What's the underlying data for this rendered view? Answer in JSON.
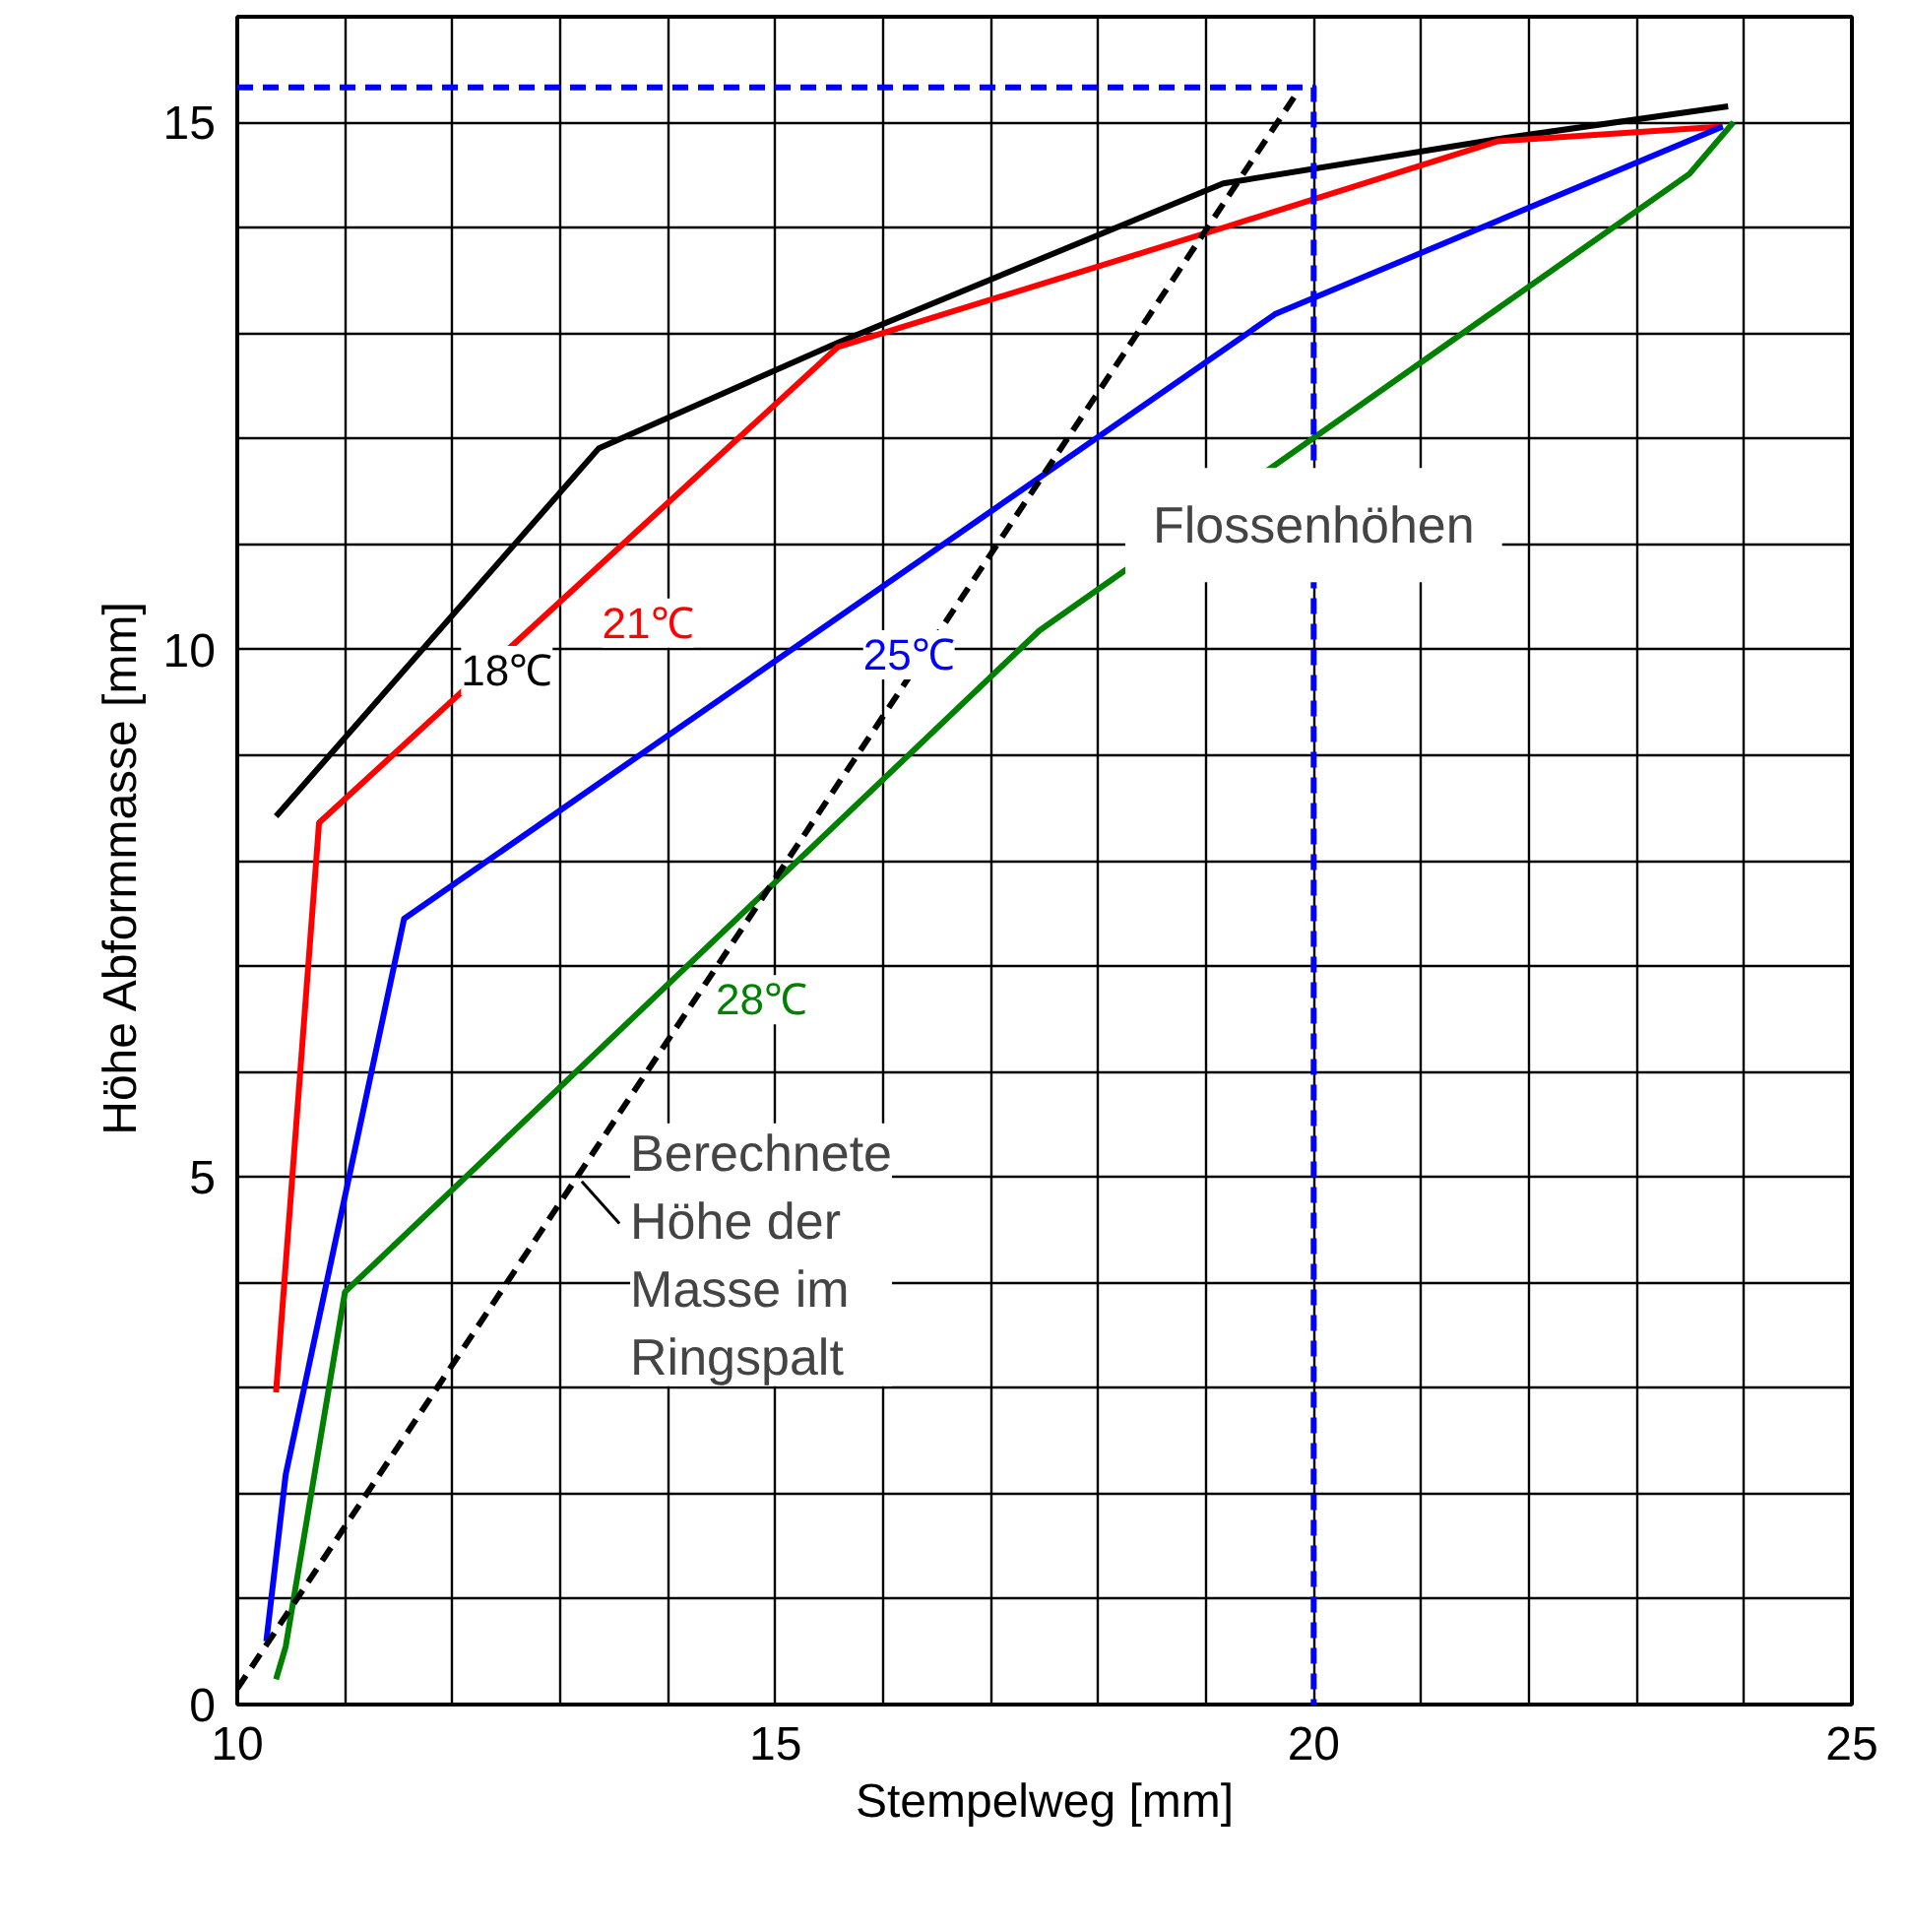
{
  "chart_data": {
    "type": "line",
    "xlabel": "Stempelweg [mm]",
    "ylabel": "Höhe  Abformmasse [mm]",
    "xlim": [
      10,
      25
    ],
    "ylim": [
      0,
      16
    ],
    "xticks": [
      10,
      {
        "value": 11,
        "label": null
      },
      {
        "value": 12,
        "label": null
      },
      {
        "value": 13,
        "label": null
      },
      {
        "value": 14,
        "label": null
      },
      15,
      {
        "value": 16,
        "label": null
      },
      {
        "value": 17,
        "label": null
      },
      {
        "value": 18,
        "label": null
      },
      {
        "value": 19,
        "label": null
      },
      20,
      {
        "value": 21,
        "label": null
      },
      {
        "value": 22,
        "label": null
      },
      {
        "value": 23,
        "label": null
      },
      {
        "value": 24,
        "label": null
      },
      25
    ],
    "yticks": [
      0,
      {
        "value": 1,
        "label": null
      },
      {
        "value": 2,
        "label": null
      },
      {
        "value": 3,
        "label": null
      },
      {
        "value": 4,
        "label": null
      },
      5,
      {
        "value": 6,
        "label": null
      },
      {
        "value": 7,
        "label": null
      },
      {
        "value": 8,
        "label": null
      },
      {
        "value": 9,
        "label": null
      },
      10,
      {
        "value": 11,
        "label": null
      },
      {
        "value": 12,
        "label": null
      },
      {
        "value": 13,
        "label": null
      },
      {
        "value": 14,
        "label": null
      },
      15,
      {
        "value": 16,
        "label": null
      }
    ],
    "grid": true,
    "marker": "none",
    "series": [
      {
        "name": "18℃",
        "color": "#000000",
        "x": [
          10.36,
          13.36,
          15.58,
          19.16,
          21.71,
          23.85
        ],
        "values": [
          8.42,
          11.91,
          12.91,
          14.42,
          14.84,
          15.15
        ]
      },
      {
        "name": "21℃",
        "color": "#ff0000",
        "x": [
          10.36,
          10.76,
          15.58,
          19.16,
          21.71,
          23.8
        ],
        "values": [
          2.96,
          8.36,
          12.87,
          14.0,
          14.82,
          14.96
        ]
      },
      {
        "name": "25℃",
        "color": "#0000ff",
        "x": [
          10.27,
          10.45,
          11.55,
          19.64,
          23.8
        ],
        "values": [
          0.6,
          2.18,
          7.45,
          13.18,
          14.96
        ]
      },
      {
        "name": "28℃",
        "color": "#008000",
        "x": [
          10.36,
          10.45,
          11.0,
          17.45,
          23.49,
          23.9
        ],
        "values": [
          0.24,
          0.55,
          3.91,
          10.18,
          14.51,
          15.0
        ]
      },
      {
        "color": "#000000",
        "line_style": "dashed",
        "x": [
          10,
          19.82
        ],
        "values": [
          0.15,
          15.24
        ]
      },
      {
        "color": "#0000ff",
        "line_style": "dashed",
        "x": [
          10,
          20,
          20
        ],
        "values": [
          15.33,
          15.33,
          0
        ]
      }
    ],
    "annotations": [
      {
        "text": "Berechnete\nHöhe der\nMasse im\nRingspalt",
        "x": 13.2,
        "y": 4.96
      },
      {
        "text": "Flossenhöhen",
        "x": 20,
        "y": 11.18
      }
    ]
  }
}
